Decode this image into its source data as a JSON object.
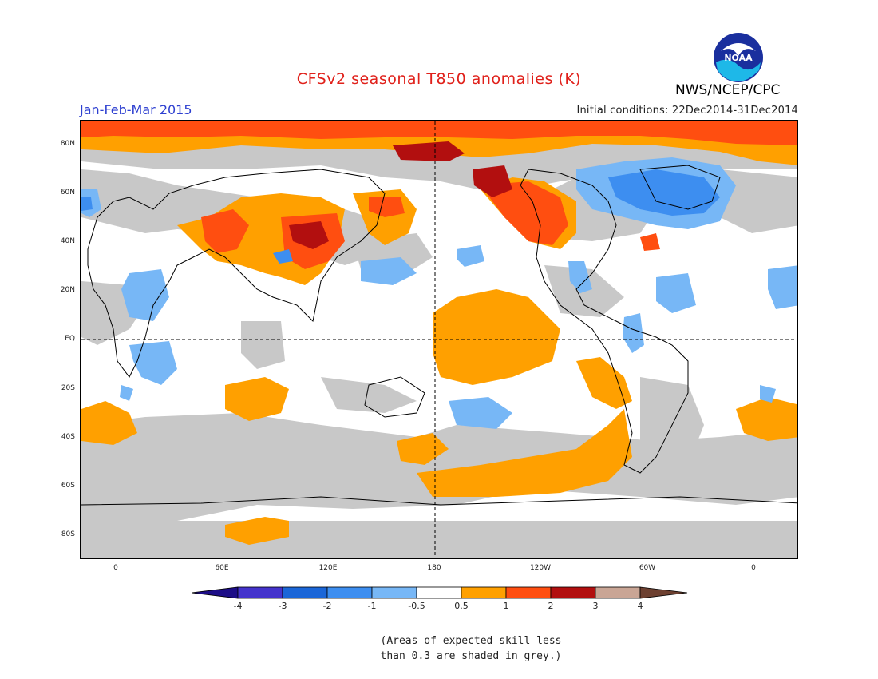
{
  "header": {
    "title": "CFSv2 seasonal T850 anomalies (K)",
    "season": "Jan-Feb-Mar 2015",
    "initial_conditions": "Initial conditions: 22Dec2014-31Dec2014",
    "agency": "NWS/NCEP/CPC",
    "logo_text": "NOAA"
  },
  "map": {
    "lat_labels": [
      "80N",
      "60N",
      "40N",
      "20N",
      "EQ",
      "20S",
      "40S",
      "60S",
      "80S"
    ],
    "lon_labels": [
      "0",
      "60E",
      "120E",
      "180",
      "120W",
      "60W",
      "0"
    ]
  },
  "colorbar": {
    "tick_labels": [
      "-4",
      "-3",
      "-2",
      "-1",
      "-0.5",
      "0.5",
      "1",
      "2",
      "3",
      "4"
    ],
    "colors": {
      "lt_-4": "#1c0d87",
      "-4_-3": "#4433cc",
      "-3_-2": "#1a66d8",
      "-2_-1": "#3d8ef0",
      "-1_-0.5": "#77b7f6",
      "-0.5_0.5": "#ffffff",
      "0.5_1": "#ffa000",
      "1_2": "#ff4e10",
      "2_3": "#b20f0f",
      "3_4": "#c9a595",
      "gt_4": "#6d4030"
    }
  },
  "colors": {
    "low_skill_grey": "#c8c8c8",
    "title_red": "#e0201a",
    "season_blue": "#2d3fd0"
  },
  "note": {
    "line1": "(Areas of expected skill less",
    "line2": "than 0.3 are shaded in grey.)"
  }
}
